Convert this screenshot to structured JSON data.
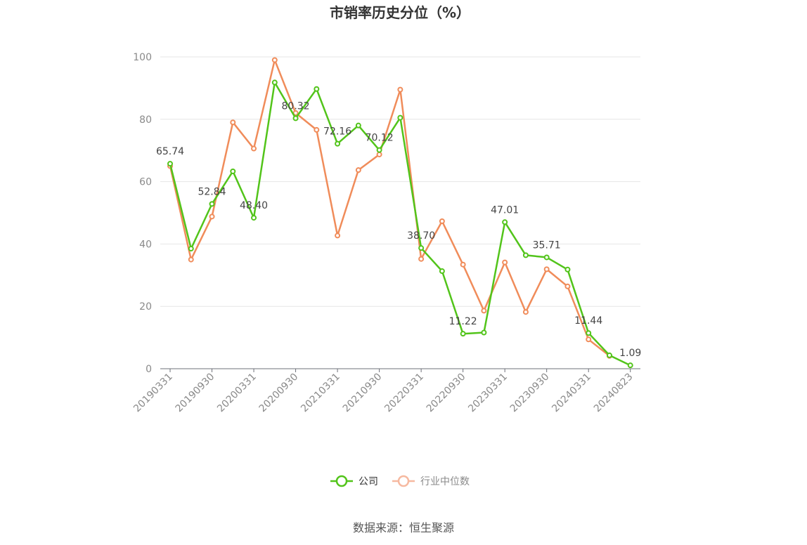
{
  "chart_data": {
    "type": "line",
    "title": "市销率历史分位（%）",
    "source": "数据来源：恒生聚源",
    "ylim": [
      0,
      100
    ],
    "y_ticks": [
      "0",
      "20",
      "40",
      "60",
      "80",
      "100"
    ],
    "x_tick_labels": [
      "20190331",
      "20190930",
      "20200331",
      "20200930",
      "20210331",
      "20210930",
      "20220331",
      "20220930",
      "20230331",
      "20230930",
      "20240331",
      "20240823"
    ],
    "grid": true,
    "legend_position": "bottom",
    "series": [
      {
        "name": "公司",
        "color": "#52c41a",
        "values": [
          65.74,
          38.5,
          52.84,
          63.3,
          48.4,
          91.8,
          80.32,
          89.7,
          72.16,
          78.0,
          70.12,
          80.5,
          38.7,
          31.3,
          11.22,
          11.6,
          47.01,
          36.4,
          35.71,
          31.8,
          11.44,
          4.3,
          1.09
        ],
        "labels": {
          "0": "65.74",
          "2": "52.84",
          "4": "48.40",
          "6": "80.32",
          "8": "72.16",
          "10": "70.12",
          "12": "38.70",
          "14": "11.22",
          "16": "47.01",
          "18": "35.71",
          "20": "11.44",
          "22": "1.09"
        }
      },
      {
        "name": "行业中位数",
        "color": "#f08c5a",
        "values": [
          65.0,
          35.0,
          48.8,
          79.0,
          70.6,
          99.0,
          82.0,
          76.6,
          42.7,
          63.7,
          68.7,
          89.5,
          35.2,
          47.3,
          33.4,
          18.6,
          34.1,
          18.2,
          31.9,
          26.4,
          9.4,
          4.1,
          null
        ]
      }
    ]
  }
}
